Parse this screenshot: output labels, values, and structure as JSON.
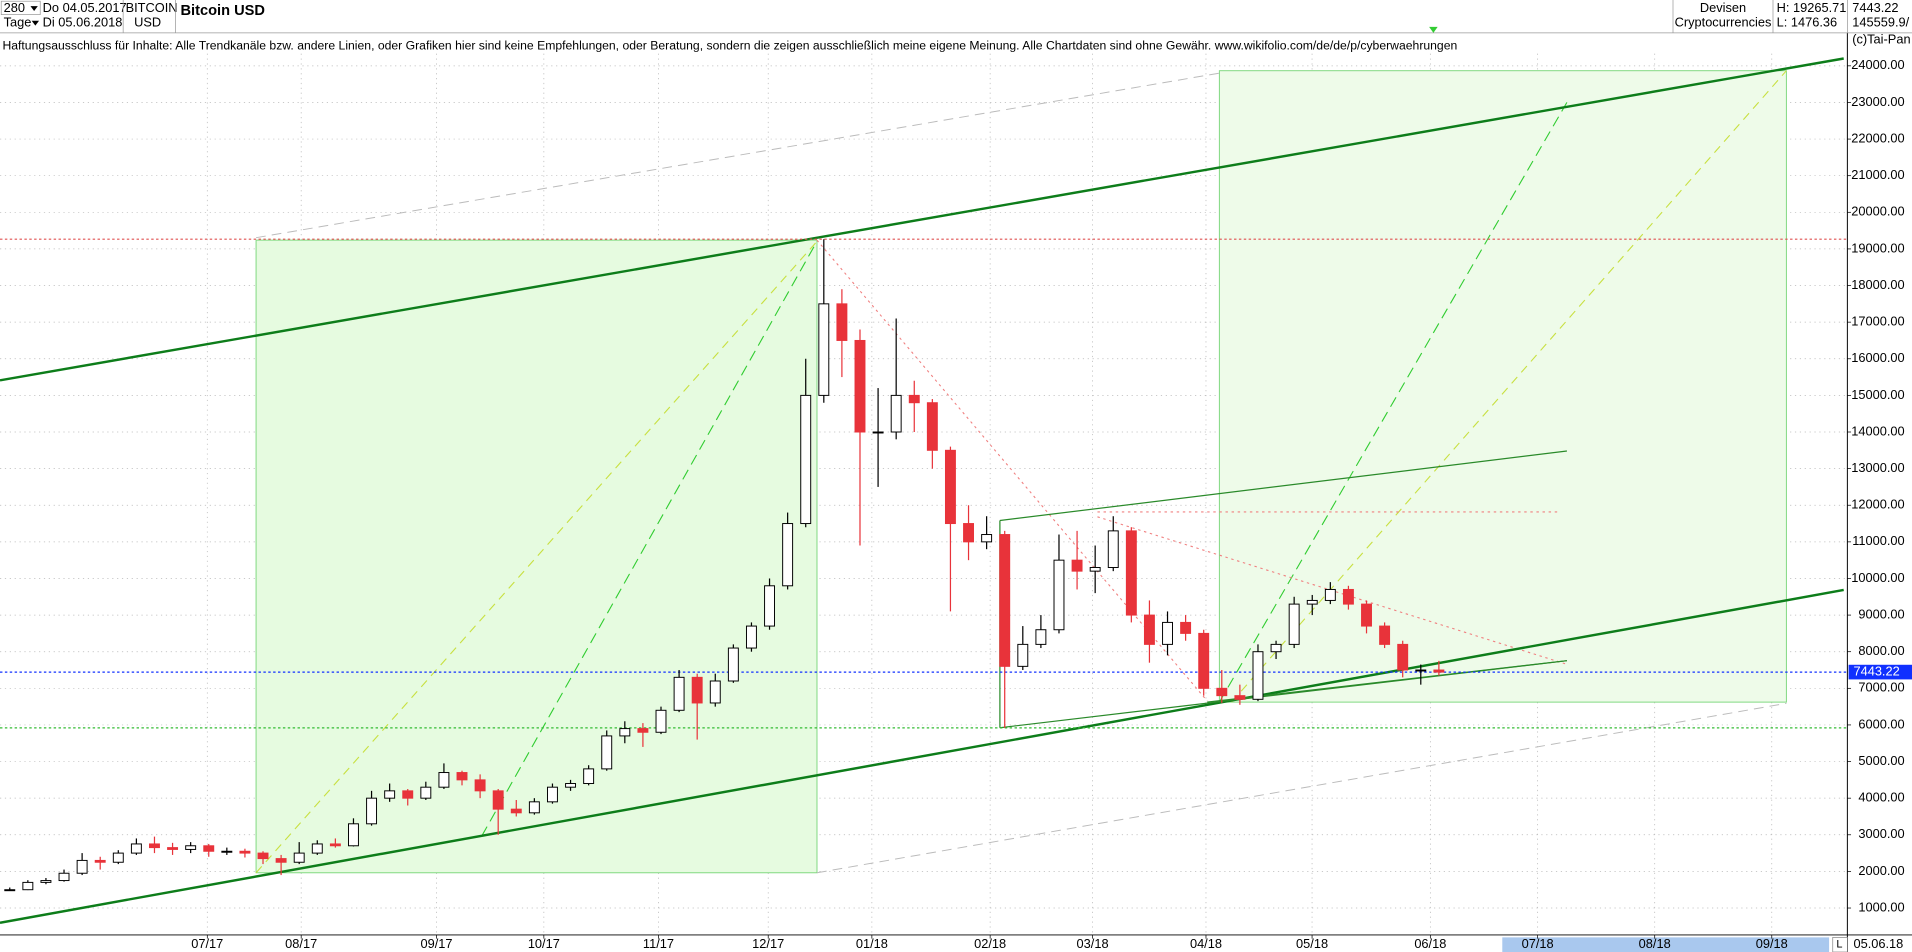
{
  "header": {
    "period": "280",
    "from": "Do 04.05.2017",
    "unit": "Tage",
    "to": "Di 05.06.2018",
    "symbol": "BITCOIN",
    "currency": "USD",
    "market": "Devisen",
    "group": "Cryptocurrencies",
    "high": "H: 19265.71",
    "low": "L: 1476.36",
    "volume": "145559.9/",
    "disclaimer": "Haftungsausschluss für Inhalte: Alle Trendkanäle bzw. andere Linien, oder Grafiken hier sind keine Empfehlungen, oder Beratung, sondern die zeigen ausschließlich meine eigene Meinung. Alle Chartdaten sind ohne Gewähr.  www.wikifolio.com/de/de/p/cyberwaehrungen",
    "copyright": "(c)Tai-Pan",
    "end_date": "05.06.18",
    "scale_mode": "L"
  },
  "chart_data": {
    "type": "candlestick",
    "title": "Bitcoin USD",
    "up_color": "#000000",
    "down_color": "#e8333a",
    "candles": [
      [
        1480,
        1560,
        1476.36,
        1500
      ],
      [
        1500,
        1760,
        1490,
        1700
      ],
      [
        1700,
        1820,
        1650,
        1750
      ],
      [
        1750,
        2050,
        1720,
        1950
      ],
      [
        1950,
        2500,
        1900,
        2300
      ],
      [
        2300,
        2400,
        2050,
        2250
      ],
      [
        2250,
        2580,
        2200,
        2500
      ],
      [
        2500,
        2900,
        2450,
        2750
      ],
      [
        2750,
        2950,
        2500,
        2650
      ],
      [
        2650,
        2780,
        2450,
        2600
      ],
      [
        2600,
        2800,
        2500,
        2700
      ],
      [
        2700,
        2750,
        2400,
        2550
      ],
      [
        2550,
        2650,
        2450,
        2550
      ],
      [
        2550,
        2620,
        2380,
        2500
      ],
      [
        2500,
        2550,
        2200,
        2350
      ],
      [
        2350,
        2450,
        1900,
        2250
      ],
      [
        2250,
        2800,
        2200,
        2500
      ],
      [
        2500,
        2850,
        2450,
        2750
      ],
      [
        2750,
        2900,
        2650,
        2700
      ],
      [
        2700,
        3450,
        2680,
        3300
      ],
      [
        3300,
        4200,
        3250,
        4000
      ],
      [
        4000,
        4400,
        3900,
        4200
      ],
      [
        4200,
        4250,
        3800,
        4000
      ],
      [
        4000,
        4450,
        3950,
        4300
      ],
      [
        4300,
        4950,
        4250,
        4700
      ],
      [
        4700,
        4750,
        4350,
        4500
      ],
      [
        4500,
        4650,
        4000,
        4200
      ],
      [
        4200,
        4250,
        3000,
        3700
      ],
      [
        3700,
        3950,
        3500,
        3600
      ],
      [
        3600,
        4000,
        3550,
        3900
      ],
      [
        3900,
        4400,
        3850,
        4300
      ],
      [
        4300,
        4500,
        4200,
        4400
      ],
      [
        4400,
        4900,
        4350,
        4800
      ],
      [
        4800,
        5850,
        4750,
        5700
      ],
      [
        5700,
        6100,
        5500,
        5900
      ],
      [
        5900,
        6050,
        5400,
        5800
      ],
      [
        5800,
        6500,
        5750,
        6400
      ],
      [
        6400,
        7500,
        6350,
        7300
      ],
      [
        7300,
        7400,
        5600,
        6600
      ],
      [
        6600,
        7400,
        6500,
        7200
      ],
      [
        7200,
        8200,
        7150,
        8100
      ],
      [
        8100,
        8800,
        8000,
        8700
      ],
      [
        8700,
        10000,
        8600,
        9800
      ],
      [
        9800,
        11800,
        9700,
        11500
      ],
      [
        11500,
        16000,
        11400,
        15000
      ],
      [
        15000,
        19265.71,
        14800,
        17500
      ],
      [
        17500,
        17900,
        15500,
        16500
      ],
      [
        16500,
        16800,
        10900,
        14000
      ],
      [
        14000,
        15200,
        12500,
        14000
      ],
      [
        14000,
        17100,
        13800,
        15000
      ],
      [
        15000,
        15400,
        14000,
        14800
      ],
      [
        14800,
        14900,
        13000,
        13500
      ],
      [
        13500,
        13600,
        9100,
        11500
      ],
      [
        11500,
        12000,
        10500,
        11000
      ],
      [
        11000,
        11700,
        10800,
        11200
      ],
      [
        11200,
        11300,
        5920,
        7600
      ],
      [
        7600,
        8700,
        7500,
        8200
      ],
      [
        8200,
        9000,
        8100,
        8600
      ],
      [
        8600,
        11200,
        8500,
        10500
      ],
      [
        10500,
        11300,
        9700,
        10200
      ],
      [
        10200,
        10900,
        9600,
        10300
      ],
      [
        10300,
        11700,
        10200,
        11300
      ],
      [
        11300,
        11400,
        8800,
        9000
      ],
      [
        9000,
        9400,
        7700,
        8200
      ],
      [
        8200,
        9100,
        7900,
        8800
      ],
      [
        8800,
        9000,
        8300,
        8500
      ],
      [
        8500,
        8600,
        6800,
        7000
      ],
      [
        7000,
        7500,
        6600,
        6800
      ],
      [
        6800,
        7100,
        6550,
        6700
      ],
      [
        6700,
        8200,
        6650,
        8000
      ],
      [
        8000,
        8300,
        7800,
        8200
      ],
      [
        8200,
        9500,
        8100,
        9300
      ],
      [
        9300,
        9550,
        9000,
        9400
      ],
      [
        9400,
        9900,
        9300,
        9700
      ],
      [
        9700,
        9800,
        9150,
        9300
      ],
      [
        9300,
        9400,
        8500,
        8700
      ],
      [
        8700,
        8800,
        8100,
        8200
      ],
      [
        8200,
        8300,
        7300,
        7500
      ],
      [
        7500,
        7650,
        7100,
        7500
      ],
      [
        7500,
        7750,
        7350,
        7443.22
      ]
    ],
    "x_labels": [
      "07/17",
      "08/17",
      "09/17",
      "10/17",
      "11/17",
      "12/17",
      "01/18",
      "02/18",
      "03/18",
      "04/18",
      "05/18",
      "06/18",
      "07/18",
      "08/18",
      "09/18"
    ],
    "reference_lines": [
      {
        "value": 19265.71,
        "color": "#e05050"
      },
      {
        "value": 7443.22,
        "color": "#1030ff"
      },
      {
        "value": 5920,
        "color": "#33bb33"
      }
    ],
    "ylim": [
      265,
      25798
    ],
    "yticks": [
      {
        "value": 1000,
        "label": "1000.00"
      },
      {
        "value": 2000,
        "label": "2000.00"
      },
      {
        "value": 3000,
        "label": "3000.00"
      },
      {
        "value": 4000,
        "label": "4000.00"
      },
      {
        "value": 5000,
        "label": "5000.00"
      },
      {
        "value": 6000,
        "label": "6000.00"
      },
      {
        "value": 7000,
        "label": "7000.00"
      },
      {
        "value": 8000,
        "label": "8000.00"
      },
      {
        "value": 9000,
        "label": "9000.00"
      },
      {
        "value": 10000,
        "label": "10000.00"
      },
      {
        "value": 11000,
        "label": "11000.00"
      },
      {
        "value": 12000,
        "label": "12000.00"
      },
      {
        "value": 13000,
        "label": "13000.00"
      },
      {
        "value": 14000,
        "label": "14000.00"
      },
      {
        "value": 15000,
        "label": "15000.00"
      },
      {
        "value": 16000,
        "label": "16000.00"
      },
      {
        "value": 17000,
        "label": "17000.00"
      },
      {
        "value": 18000,
        "label": "18000.00"
      },
      {
        "value": 19000,
        "label": "19000.00"
      },
      {
        "value": 20000,
        "label": "20000.00"
      },
      {
        "value": 21000,
        "label": "21000.00"
      },
      {
        "value": 22000,
        "label": "22000.00"
      },
      {
        "value": 23000,
        "label": "23000.00"
      },
      {
        "value": 24000,
        "label": "24000.00"
      }
    ],
    "grid": true
  }
}
